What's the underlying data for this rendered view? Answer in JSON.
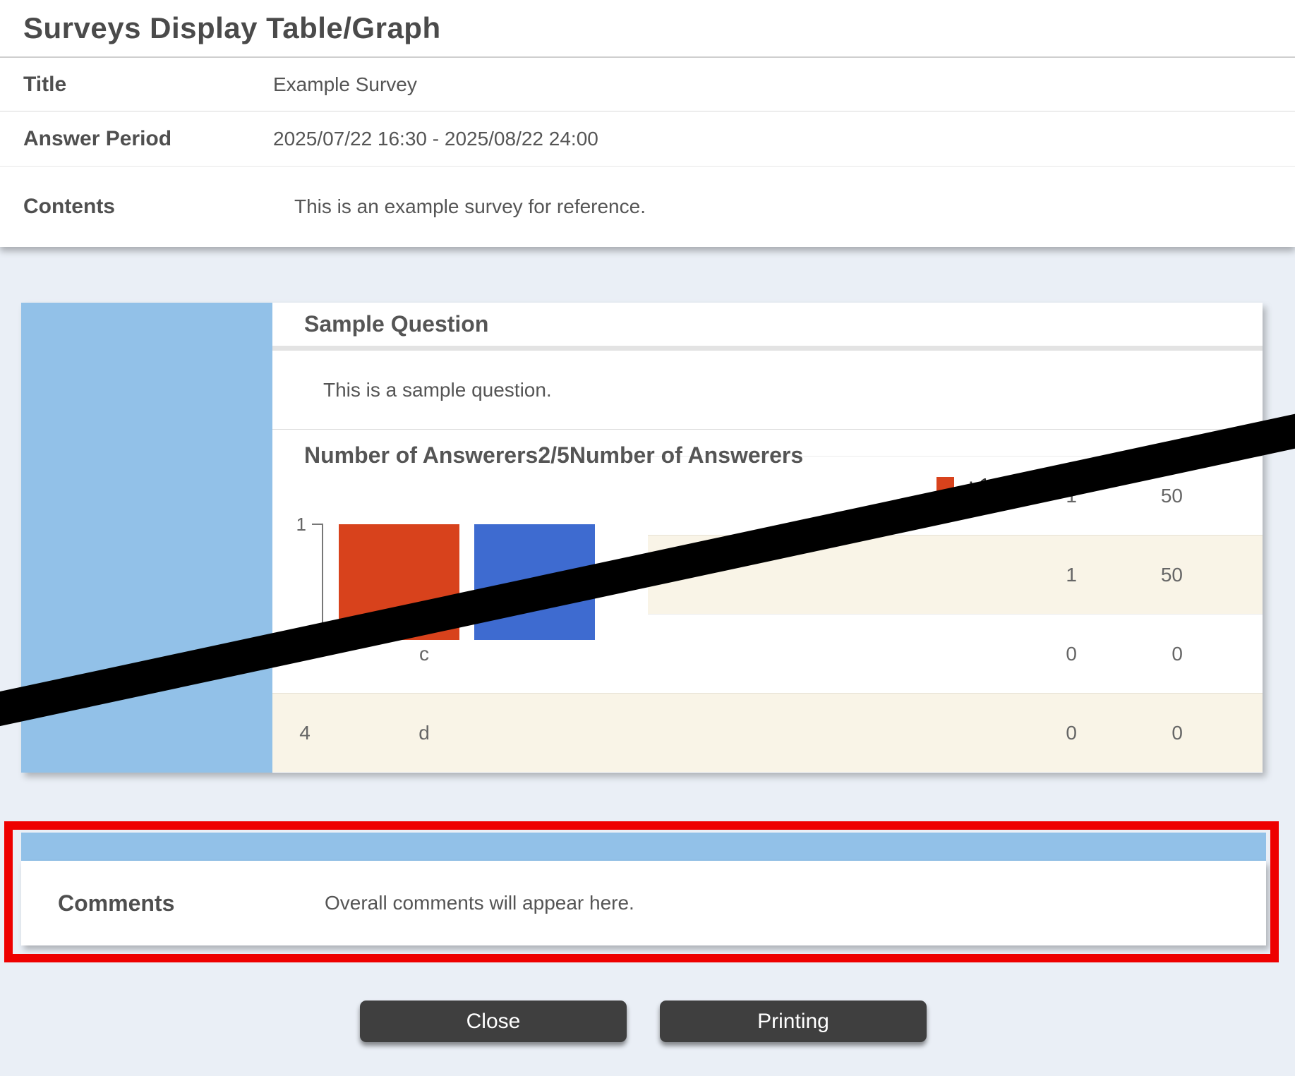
{
  "header": {
    "page_title": "Surveys Display Table/Graph"
  },
  "survey_info": {
    "title_label": "Title",
    "title_value": "Example Survey",
    "period_label": "Answer Period",
    "period_value": "2025/07/22 16:30 - 2025/08/22 24:00",
    "contents_label": "Contents",
    "contents_value": "This is an example survey for reference."
  },
  "question": {
    "name": "Sample Question",
    "description": "This is a sample question.",
    "stats_heading": "Number of Answerers2/5Number of Answerers",
    "answered_count": "2/5"
  },
  "chart_data": {
    "type": "bar",
    "title": "Number of Answerers",
    "y_ticks": [
      "1"
    ],
    "ylim": [
      0,
      1
    ],
    "series": [
      {
        "name": "",
        "color": "#d8421c",
        "value": 1
      },
      {
        "name": "",
        "color": "#3e6bd0",
        "value": 1
      }
    ],
    "legend_visible_text": ": 1",
    "note": "legend and axis base partially hidden by black redaction stripe"
  },
  "results_table": {
    "rows": [
      {
        "num": "",
        "label": "",
        "count": "1",
        "pct": "50"
      },
      {
        "num": "",
        "label": "",
        "count": "1",
        "pct": "50"
      },
      {
        "num": "",
        "label": "c",
        "count": "0",
        "pct": "0"
      },
      {
        "num": "4",
        "label": "d",
        "count": "0",
        "pct": "0"
      }
    ]
  },
  "comments": {
    "label": "Comments",
    "value": "Overall comments will appear here."
  },
  "buttons": {
    "close_label": "Close",
    "printing_label": "Printing"
  },
  "colors": {
    "page_background": "#eaeff6",
    "panel_blue": "#92c1e8",
    "bar_red": "#d8421c",
    "bar_blue": "#3e6bd0",
    "row_shaded": "#f9f4e7",
    "annotation_red": "#ee0000",
    "button_dark": "#3f3f3f",
    "redaction_black": "#000000"
  }
}
